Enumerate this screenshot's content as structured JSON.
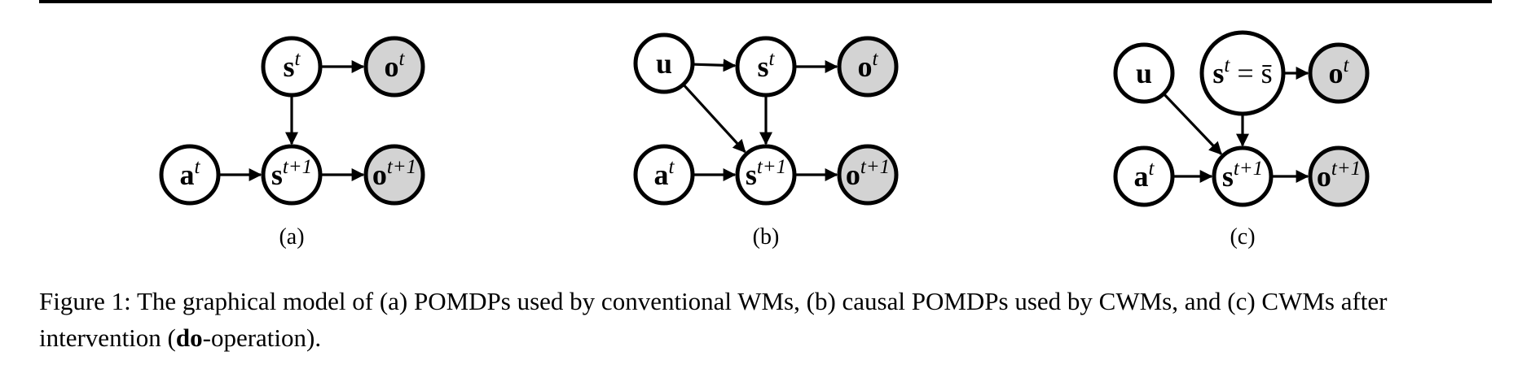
{
  "figure": {
    "panels": [
      {
        "label": "(a)",
        "nodes": [
          {
            "id": "a_st",
            "text": "s",
            "sup": "t",
            "observed": false
          },
          {
            "id": "a_ot",
            "text": "o",
            "sup": "t",
            "observed": true
          },
          {
            "id": "a_at",
            "text": "a",
            "sup": "t",
            "observed": false
          },
          {
            "id": "a_st1",
            "text": "s",
            "sup": "t+1",
            "observed": false
          },
          {
            "id": "a_ot1",
            "text": "o",
            "sup": "t+1",
            "observed": true
          }
        ]
      },
      {
        "label": "(b)",
        "nodes": [
          {
            "id": "b_u",
            "text": "u",
            "sup": "",
            "observed": false
          },
          {
            "id": "b_st",
            "text": "s",
            "sup": "t",
            "observed": false
          },
          {
            "id": "b_ot",
            "text": "o",
            "sup": "t",
            "observed": true
          },
          {
            "id": "b_at",
            "text": "a",
            "sup": "t",
            "observed": false
          },
          {
            "id": "b_st1",
            "text": "s",
            "sup": "t+1",
            "observed": false
          },
          {
            "id": "b_ot1",
            "text": "o",
            "sup": "t+1",
            "observed": true
          }
        ]
      },
      {
        "label": "(c)",
        "nodes": [
          {
            "id": "c_u",
            "text": "u",
            "sup": "",
            "observed": false
          },
          {
            "id": "c_st",
            "text": "s",
            "sup": "t",
            "suffix": " = s̄",
            "observed": false
          },
          {
            "id": "c_ot",
            "text": "o",
            "sup": "t",
            "observed": true
          },
          {
            "id": "c_at",
            "text": "a",
            "sup": "t",
            "observed": false
          },
          {
            "id": "c_st1",
            "text": "s",
            "sup": "t+1",
            "observed": false
          },
          {
            "id": "c_ot1",
            "text": "o",
            "sup": "t+1",
            "observed": true
          }
        ]
      }
    ]
  },
  "caption": {
    "prefix": "Figure 1: The graphical model of (a) POMDPs used by conventional WMs, (b) causal POMDPs used by CWMs, and (c) CWMs after intervention (",
    "bold": "do",
    "suffix": "-operation)."
  },
  "colors": {
    "observed_fill": "#d3d3d3",
    "latent_fill": "#ffffff",
    "stroke": "#000000"
  }
}
